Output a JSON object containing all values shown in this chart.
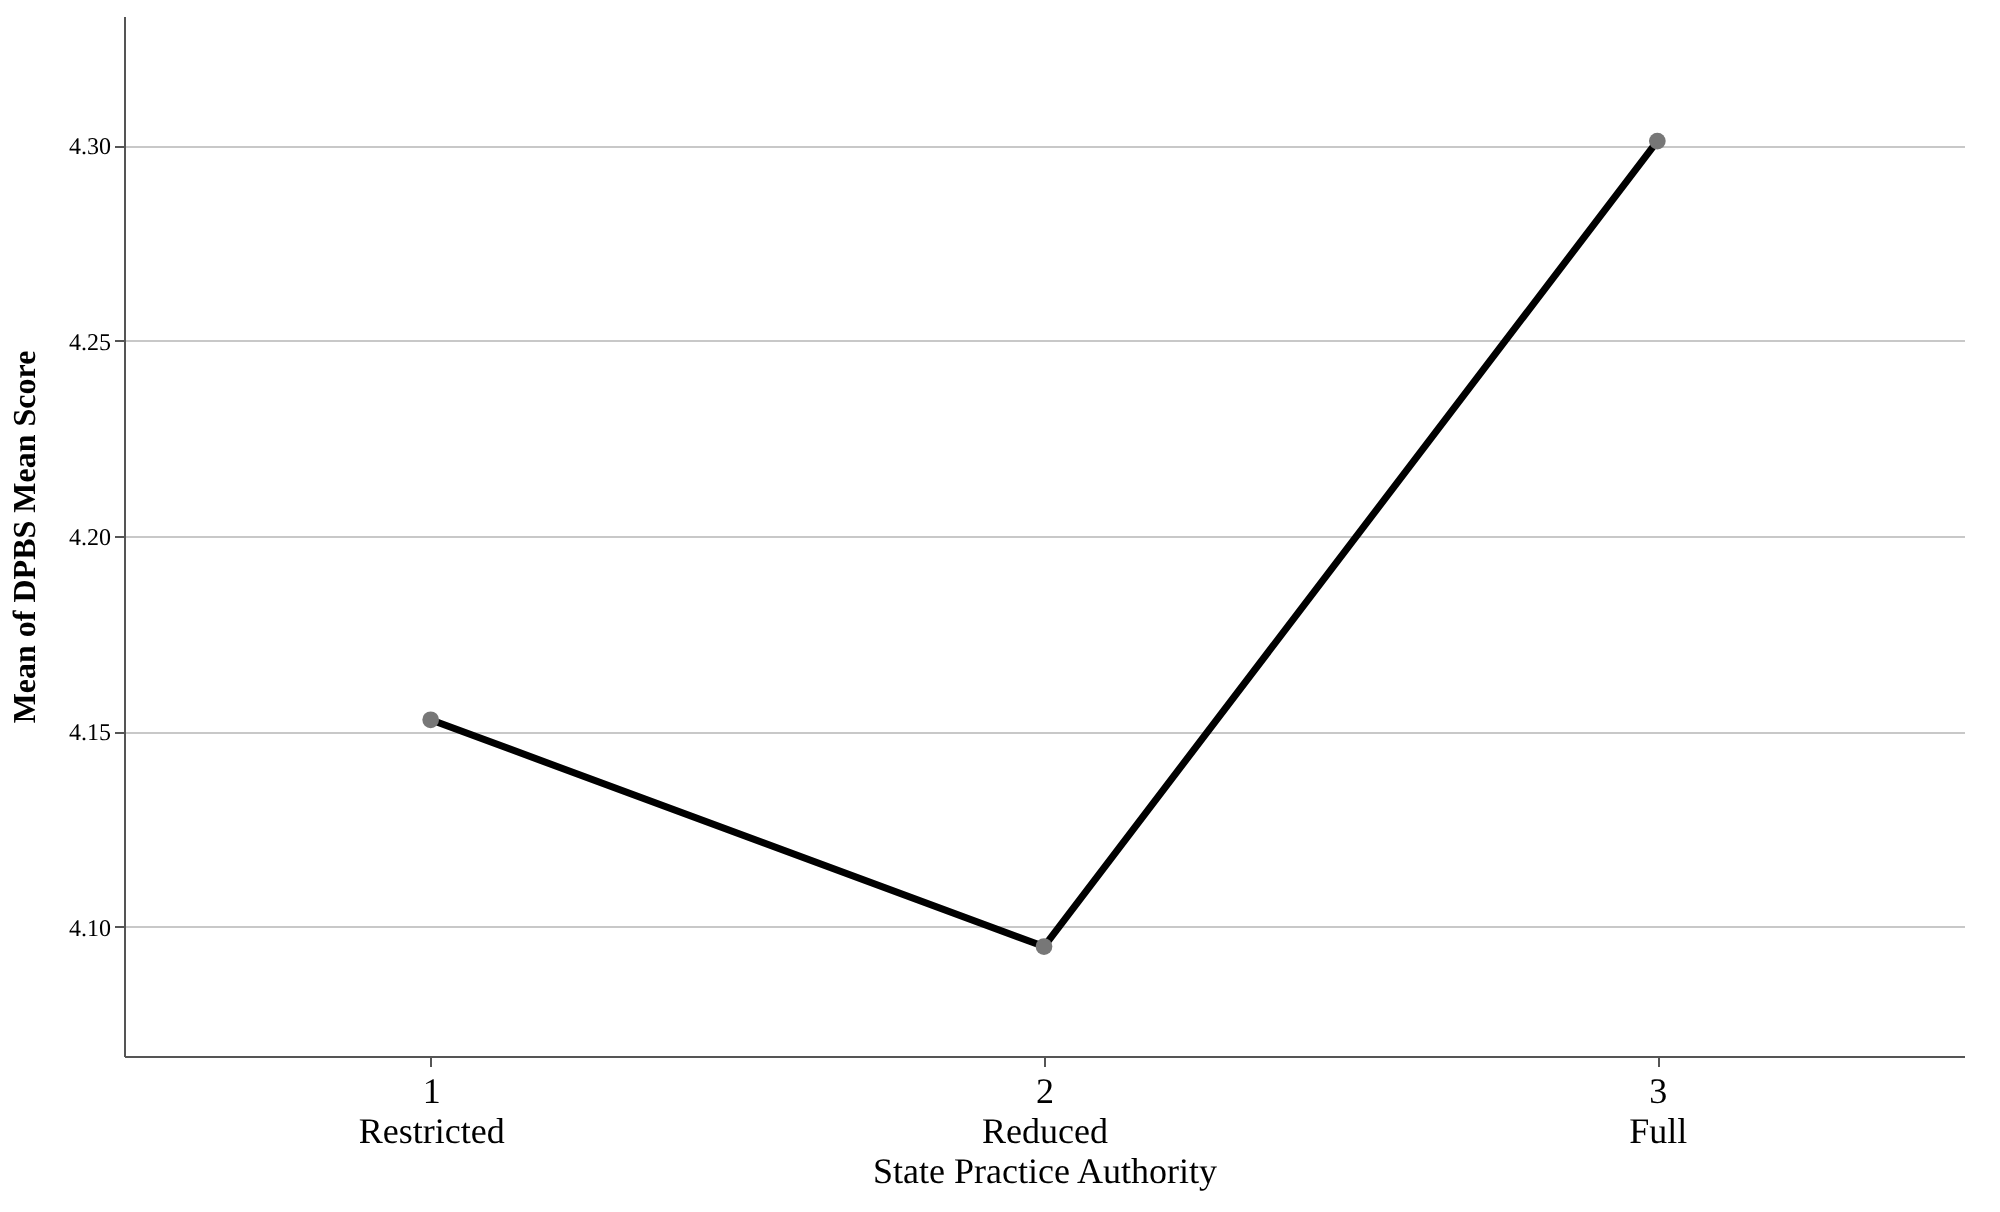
{
  "chart_data": {
    "type": "line",
    "xlabel": "State Practice Authority",
    "ylabel": "Mean of DPBS Mean Score",
    "categories": [
      "1\nRestricted",
      "2\nReduced",
      "3\nFull"
    ],
    "series": [
      {
        "color": "#000000",
        "values": [
          4.153,
          4.095,
          4.301
        ]
      }
    ],
    "ylim": [
      4.067,
      4.333
    ],
    "yticks": [
      {
        "value": 4.1,
        "label": "4.10"
      },
      {
        "value": 4.15,
        "label": "4.15"
      },
      {
        "value": 4.2,
        "label": "4.20"
      },
      {
        "value": 4.25,
        "label": "4.25"
      },
      {
        "value": 4.3,
        "label": "4.30"
      }
    ],
    "grid": "y",
    "marker": "circle",
    "line_style": "solid"
  }
}
